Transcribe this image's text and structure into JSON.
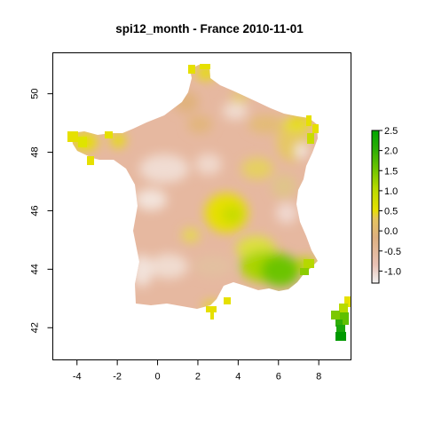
{
  "map": {
    "title": "spi12_month - France 2010-11-01",
    "x_ticks": [
      "-4",
      "-2",
      "0",
      "2",
      "4",
      "6",
      "8"
    ],
    "x_tick_values": [
      -4,
      -2,
      0,
      2,
      4,
      6,
      8
    ],
    "y_ticks": [
      "42",
      "44",
      "46",
      "48",
      "50"
    ],
    "y_tick_values": [
      42,
      44,
      46,
      48,
      50
    ],
    "xlim": [
      -5.2,
      9.6
    ],
    "ylim": [
      40.9,
      51.4
    ],
    "legend": {
      "ticks": [
        "2.5",
        "2.0",
        "1.5",
        "1.0",
        "0.5",
        "0.0",
        "-0.5",
        "-1.0"
      ],
      "tick_values": [
        2.5,
        2.0,
        1.5,
        1.0,
        0.5,
        0.0,
        -0.5,
        -1.0
      ],
      "range": [
        -1.3,
        2.5
      ],
      "colors": [
        "#f2f2f2",
        "#e6b5a6",
        "#deb080",
        "#e6c35a",
        "#e6e600",
        "#a8d600",
        "#5fc000",
        "#1aa40a",
        "#00a600"
      ]
    }
  }
}
